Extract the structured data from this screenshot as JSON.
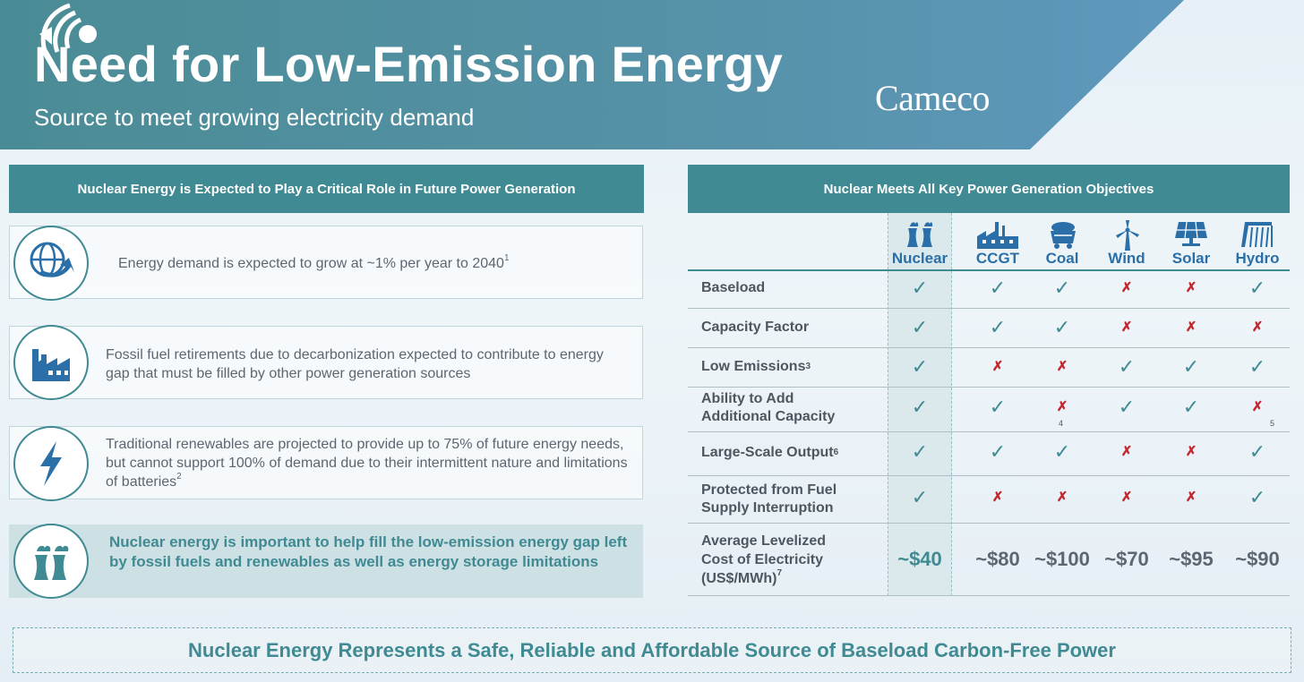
{
  "header": {
    "title": "Need for Low-Emission Energy",
    "subtitle": "Source to meet growing electricity demand",
    "logo_text": "Cameco",
    "colors": {
      "banner": "#4c8d9b",
      "banner_right": "#5a93b8",
      "accent": "#3f8a93"
    }
  },
  "left_panel": {
    "heading": "Nuclear Energy is Expected to Play a Critical Role in Future Power Generation",
    "items": [
      {
        "icon": "globe-arrow-icon",
        "text": "Energy demand is expected to grow at ~1% per year to 2040",
        "footnote": "1"
      },
      {
        "icon": "factory-icon",
        "text": "Fossil fuel retirements due to decarbonization expected to contribute to energy gap that must be filled by other power generation sources",
        "footnote": ""
      },
      {
        "icon": "lightning-bolt-icon",
        "text": "Traditional renewables are projected to provide up to 75% of future energy needs, but cannot support 100% of demand due to their intermittent nature and limitations of batteries",
        "footnote": "2"
      },
      {
        "icon": "cooling-tower-icon",
        "text": "Nuclear energy is important to help fill the low-emission energy gap left by fossil fuels and renewables as well as energy storage limitations",
        "footnote": ""
      }
    ]
  },
  "right_panel": {
    "heading": "Nuclear Meets All Key Power Generation Objectives",
    "columns": [
      {
        "label": "Nuclear",
        "icon": "cooling-tower-icon"
      },
      {
        "label": "CCGT",
        "icon": "gas-plant-icon"
      },
      {
        "label": "Coal",
        "icon": "coal-cart-icon"
      },
      {
        "label": "Wind",
        "icon": "wind-turbine-icon"
      },
      {
        "label": "Solar",
        "icon": "solar-panel-icon"
      },
      {
        "label": "Hydro",
        "icon": "dam-icon"
      }
    ],
    "rows": [
      {
        "label": "Baseload",
        "sup": "",
        "marks": [
          "✓",
          "✓",
          "✓",
          "✗",
          "✗",
          "✓"
        ]
      },
      {
        "label": "Capacity Factor",
        "sup": "",
        "marks": [
          "✓",
          "✓",
          "✓",
          "✗",
          "✗",
          "✗"
        ]
      },
      {
        "label": "Low Emissions",
        "sup": "3",
        "marks": [
          "✓",
          "✗",
          "✗",
          "✓",
          "✓",
          "✓"
        ]
      },
      {
        "label": "Ability to Add Additional Capacity",
        "sup": "",
        "marks": [
          "✓",
          "✓",
          "✗",
          "✓",
          "✓",
          "✗"
        ],
        "cell_notes": [
          "",
          "",
          "4",
          "",
          "",
          "5"
        ]
      },
      {
        "label": "Large-Scale Output",
        "sup": "6",
        "marks": [
          "✓",
          "✓",
          "✓",
          "✗",
          "✗",
          "✓"
        ]
      },
      {
        "label": "Protected from Fuel Supply Interruption",
        "sup": "",
        "marks": [
          "✓",
          "✗",
          "✗",
          "✗",
          "✗",
          "✓"
        ]
      }
    ],
    "cost_row": {
      "label": "Average Levelized Cost of Electricity (US$/MWh)",
      "sup": "7",
      "values": [
        "~$40",
        "~$80",
        "~$100",
        "~$70",
        "~$95",
        "~$90"
      ]
    }
  },
  "footer": {
    "text": "Nuclear Energy Represents a Safe, Reliable and Affordable Source of Baseload Carbon-Free Power"
  }
}
